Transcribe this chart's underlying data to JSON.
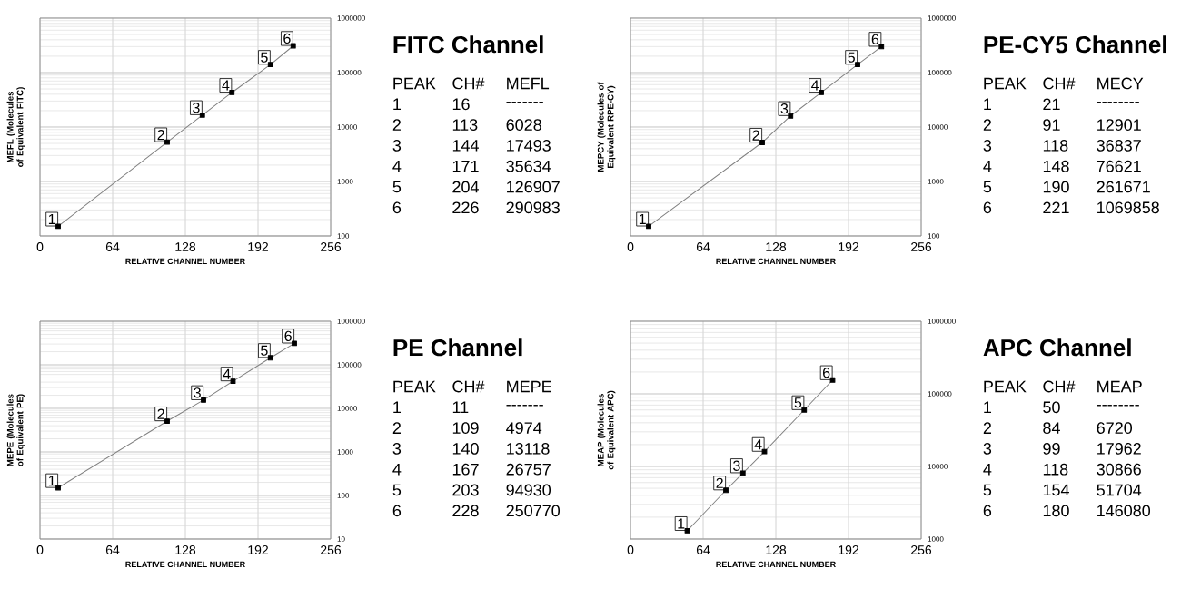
{
  "chart_data": [
    {
      "type": "line",
      "xlabel": "RELATIVE CHANNEL NUMBER",
      "ylabel": "MEFL (Molecules of Equivalent FITC)",
      "x": [
        16,
        112,
        143,
        169,
        203,
        223
      ],
      "values": [
        150,
        5300,
        16600,
        43000,
        140000,
        310000
      ],
      "color": "#000000",
      "marker": "square",
      "line_style": "solid",
      "log": "y",
      "grid": true,
      "xlim": [
        0,
        256
      ],
      "xticks": [
        0,
        64,
        128,
        192,
        256
      ],
      "ylim": [
        100,
        1000000
      ],
      "yticks": [
        100,
        1000,
        10000,
        100000,
        1000000
      ],
      "annotations": [
        {
          "text": "1",
          "x": 16,
          "y": 150
        },
        {
          "text": "2",
          "x": 112,
          "y": 5300
        },
        {
          "text": "3",
          "x": 143,
          "y": 16600
        },
        {
          "text": "4",
          "x": 169,
          "y": 43000
        },
        {
          "text": "5",
          "x": 203,
          "y": 140000
        },
        {
          "text": "6",
          "x": 223,
          "y": 310000
        },
        "**FITC Channel**",
        "PEAK",
        "CH#",
        "MEFL",
        "1",
        "16",
        "-------",
        "2",
        "113",
        "6028",
        "3",
        "144",
        "17493",
        "4",
        "171",
        "35634",
        "5",
        "204",
        "126907",
        "6",
        "226",
        "290983"
      ]
    },
    {
      "type": "line",
      "xlabel": "RELATIVE CHANNEL NUMBER",
      "ylabel": "MEPCY (Molecules of Equivalent RPE-CY)",
      "x": [
        16,
        116,
        141,
        168,
        200,
        221
      ],
      "values": [
        150,
        5200,
        16000,
        43000,
        140000,
        300000
      ],
      "color": "#000000",
      "marker": "square",
      "line_style": "solid",
      "log": "y",
      "grid": true,
      "xlim": [
        0,
        256
      ],
      "xticks": [
        0,
        64,
        128,
        192,
        256
      ],
      "ylim": [
        100,
        1000000
      ],
      "yticks": [
        100,
        1000,
        10000,
        100000,
        1000000
      ],
      "annotations": [
        {
          "text": "1",
          "x": 16,
          "y": 150
        },
        {
          "text": "2",
          "x": 116,
          "y": 5200
        },
        {
          "text": "3",
          "x": 141,
          "y": 16000
        },
        {
          "text": "4",
          "x": 168,
          "y": 43000
        },
        {
          "text": "5",
          "x": 200,
          "y": 140000
        },
        {
          "text": "6",
          "x": 221,
          "y": 300000
        },
        "**PE-CY5 Channel**",
        "PEAK",
        "CH#",
        "MECY",
        "1",
        "21",
        "--------",
        "2",
        "91",
        "12901",
        "3",
        "118",
        "36837",
        "4",
        "148",
        "76621",
        "5",
        "190",
        "261671",
        "6",
        "221",
        "1069858"
      ]
    },
    {
      "type": "line",
      "xlabel": "RELATIVE CHANNEL NUMBER",
      "ylabel": "MEPE (Molecules of Equivalent PE)",
      "x": [
        16,
        112,
        144,
        170,
        203,
        224
      ],
      "values": [
        150,
        5100,
        15500,
        42000,
        145000,
        310000
      ],
      "color": "#000000",
      "marker": "square",
      "line_style": "solid",
      "log": "y",
      "grid": true,
      "xlim": [
        0,
        256
      ],
      "xticks": [
        0,
        64,
        128,
        192,
        256
      ],
      "ylim": [
        10,
        1000000
      ],
      "yticks": [
        10,
        100,
        1000,
        10000,
        100000,
        1000000
      ],
      "annotations": [
        {
          "text": "1",
          "x": 16,
          "y": 150
        },
        {
          "text": "2",
          "x": 112,
          "y": 5100
        },
        {
          "text": "3",
          "x": 144,
          "y": 15500
        },
        {
          "text": "4",
          "x": 170,
          "y": 42000
        },
        {
          "text": "5",
          "x": 203,
          "y": 145000
        },
        {
          "text": "6",
          "x": 224,
          "y": 310000
        },
        "**PE Channel**",
        "PEAK",
        "CH#",
        "MEPE",
        "1",
        "11",
        "-------",
        "2",
        "109",
        "4974",
        "3",
        "140",
        "13118",
        "4",
        "167",
        "26757",
        "5",
        "203",
        "94930",
        "6",
        "228",
        "250770"
      ]
    },
    {
      "type": "line",
      "xlabel": "RELATIVE CHANNEL NUMBER",
      "ylabel": "MEAP (Molecules of Equivalent APC)",
      "x": [
        50,
        84,
        99,
        118,
        153,
        178
      ],
      "values": [
        1300,
        4700,
        8100,
        16000,
        60000,
        155000
      ],
      "color": "#000000",
      "marker": "square",
      "line_style": "solid",
      "log": "y",
      "grid": true,
      "xlim": [
        0,
        256
      ],
      "xticks": [
        0,
        64,
        128,
        192,
        256
      ],
      "ylim": [
        1000,
        1000000
      ],
      "yticks": [
        1000,
        10000,
        100000,
        1000000
      ],
      "annotations": [
        {
          "text": "1",
          "x": 50,
          "y": 1300
        },
        {
          "text": "2",
          "x": 84,
          "y": 4700
        },
        {
          "text": "3",
          "x": 99,
          "y": 8100
        },
        {
          "text": "4",
          "x": 118,
          "y": 16000
        },
        {
          "text": "5",
          "x": 153,
          "y": 60000
        },
        {
          "text": "6",
          "x": 178,
          "y": 155000
        },
        "**APC Channel**",
        "PEAK",
        "CH#",
        "MEAP",
        "1",
        "50",
        "--------",
        "2",
        "84",
        "6720",
        "3",
        "99",
        "17962",
        "4",
        "118",
        "30866",
        "5",
        "154",
        "51704",
        "6",
        "180",
        "146080"
      ]
    }
  ]
}
